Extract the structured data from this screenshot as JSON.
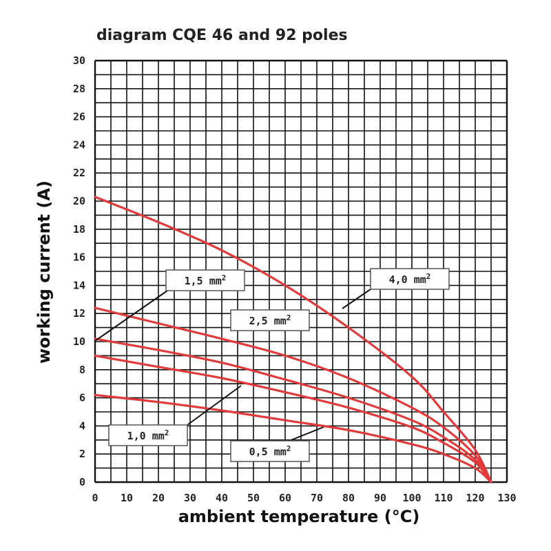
{
  "chart_data": {
    "type": "line",
    "title": "diagram CQE 46 and 92 poles",
    "xlabel": "ambient temperature (°C)",
    "ylabel": "working current (A)",
    "xlim": [
      0,
      130
    ],
    "ylim": [
      0,
      30
    ],
    "x_ticks": [
      "0",
      "10",
      "20",
      "30",
      "40",
      "50",
      "60",
      "70",
      "80",
      "90",
      "100",
      "110",
      "120",
      "130"
    ],
    "y_ticks": [
      "0",
      "2",
      "4",
      "6",
      "8",
      "10",
      "12",
      "14",
      "16",
      "18",
      "20",
      "22",
      "24",
      "26",
      "28",
      "30"
    ],
    "grid": true,
    "colors": {
      "curve": "#e23a3a",
      "grid": "#111111",
      "label_border": "#555555",
      "leader": "#111111"
    },
    "series": [
      {
        "name": "4,0 mm²",
        "x": [
          0,
          20,
          40,
          60,
          80,
          100,
          110,
          120,
          125
        ],
        "y": [
          20.3,
          18.5,
          16.5,
          14.0,
          11.0,
          7.5,
          5.0,
          2.3,
          0
        ]
      },
      {
        "name": "2,5 mm²",
        "x": [
          0,
          20,
          40,
          60,
          80,
          100,
          110,
          120,
          125
        ],
        "y": [
          12.4,
          11.3,
          10.2,
          9.0,
          7.4,
          5.3,
          3.9,
          1.9,
          0
        ]
      },
      {
        "name": "1,5 mm²",
        "x": [
          0,
          20,
          40,
          60,
          80,
          100,
          110,
          120,
          125
        ],
        "y": [
          10.2,
          9.4,
          8.5,
          7.3,
          6.0,
          4.4,
          3.2,
          1.6,
          0
        ]
      },
      {
        "name": "1,0 mm²",
        "x": [
          0,
          20,
          40,
          60,
          80,
          100,
          110,
          120,
          125
        ],
        "y": [
          9.0,
          8.2,
          7.4,
          6.4,
          5.3,
          3.9,
          2.8,
          1.4,
          0
        ]
      },
      {
        "name": "0,5 mm²",
        "x": [
          0,
          20,
          40,
          60,
          80,
          100,
          110,
          120,
          125
        ],
        "y": [
          6.2,
          5.7,
          5.1,
          4.4,
          3.7,
          2.7,
          2.0,
          1.0,
          0
        ]
      }
    ],
    "labels": [
      {
        "series": "1,5 mm²",
        "base": "1,5 mm",
        "sup": "2"
      },
      {
        "series": "2,5 mm²",
        "base": "2,5 mm",
        "sup": "2"
      },
      {
        "series": "4,0 mm²",
        "base": "4,0 mm",
        "sup": "2"
      },
      {
        "series": "1,0 mm²",
        "base": "1,0 mm",
        "sup": "2"
      },
      {
        "series": "0,5 mm²",
        "base": "0,5 mm",
        "sup": "2"
      }
    ]
  }
}
